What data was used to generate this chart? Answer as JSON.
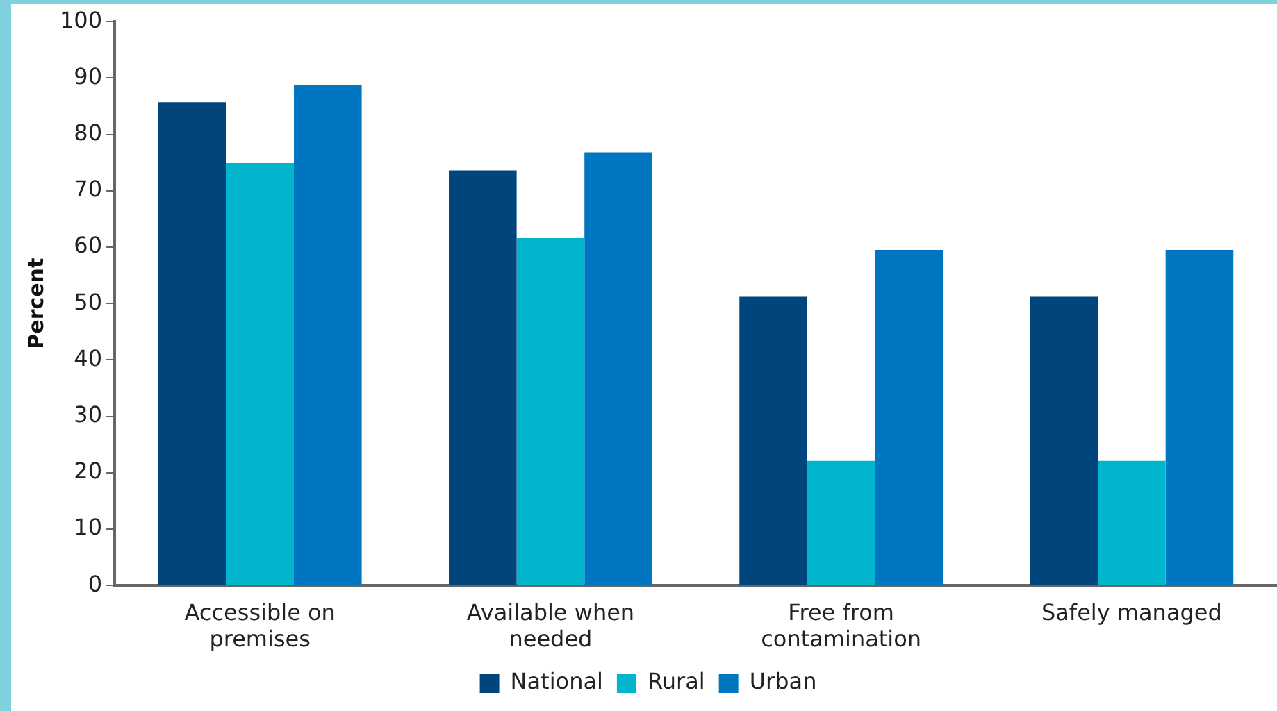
{
  "chart_data": {
    "type": "bar",
    "ylabel": "Percent",
    "categories": [
      "Accessible on premises",
      "Available when needed",
      "Free from contamination",
      "Safely managed"
    ],
    "series": [
      {
        "name": "National",
        "color": "#00457c",
        "values": [
          85.7,
          73.6,
          51.2,
          51.2
        ]
      },
      {
        "name": "Rural",
        "color": "#00b5cc",
        "values": [
          74.9,
          61.6,
          22.1,
          22.1
        ]
      },
      {
        "name": "Urban",
        "color": "#0076c0",
        "values": [
          88.8,
          76.8,
          59.5,
          59.5
        ]
      }
    ],
    "ylim": [
      0,
      100
    ],
    "yticks": [
      0,
      10,
      20,
      30,
      40,
      50,
      60,
      70,
      80,
      90,
      100
    ],
    "grid": false,
    "legend": "bottom"
  }
}
